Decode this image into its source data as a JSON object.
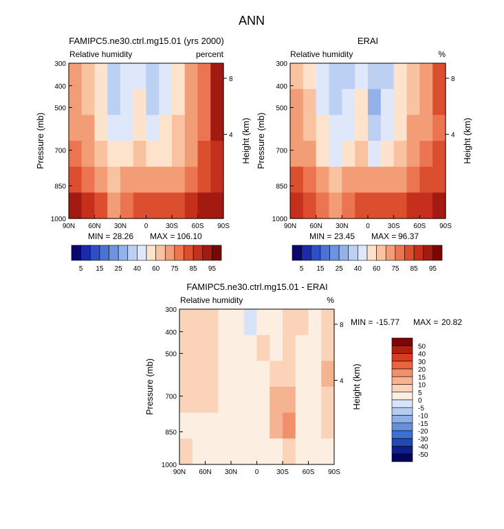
{
  "chart_data": {
    "type": "heatmap",
    "figure_title": "ANN",
    "panels": [
      {
        "id": "model",
        "title": "FAMIPC5.ne30.ctrl.mg15.01 (yrs 2000)",
        "subtitle_left": "Relative humidity",
        "subtitle_right": "percent",
        "ylabel": "Pressure (mb)",
        "y2label": "Height (km)",
        "xticks": [
          "90N",
          "60N",
          "30N",
          "0",
          "30S",
          "60S",
          "90S"
        ],
        "yticks": [
          "300",
          "400",
          "500",
          "700",
          "850",
          "1000"
        ],
        "y2ticks": [
          "8",
          "4"
        ],
        "min_label": "MIN =",
        "min_value": "28.26",
        "max_label": "MAX =",
        "max_value": "106.10",
        "colorbar_ticks": [
          "5",
          "15",
          "25",
          "40",
          "60",
          "75",
          "85",
          "95"
        ],
        "rows": [
          [
            70,
            62,
            50,
            35,
            40,
            48,
            30,
            42,
            56,
            68,
            78,
            92
          ],
          [
            72,
            64,
            52,
            38,
            42,
            50,
            34,
            46,
            58,
            66,
            76,
            94
          ],
          [
            74,
            66,
            56,
            42,
            46,
            54,
            40,
            50,
            60,
            68,
            78,
            90
          ],
          [
            76,
            70,
            60,
            50,
            55,
            62,
            52,
            58,
            64,
            70,
            80,
            86
          ],
          [
            82,
            78,
            70,
            62,
            66,
            74,
            68,
            70,
            74,
            78,
            84,
            88
          ],
          [
            92,
            86,
            80,
            72,
            76,
            84,
            82,
            84,
            82,
            88,
            92,
            94
          ]
        ]
      },
      {
        "id": "obs",
        "title": "ERAI",
        "subtitle_left": "Relative humidity",
        "subtitle_right": "%",
        "ylabel": "Pressure (mb)",
        "y2label": "Height (km)",
        "xticks": [
          "90N",
          "60N",
          "30N",
          "0",
          "30S",
          "60S",
          "90S"
        ],
        "yticks": [
          "300",
          "400",
          "500",
          "700",
          "850",
          "1000"
        ],
        "y2ticks": [
          "8",
          "4"
        ],
        "min_label": "MIN =",
        "min_value": "23.45",
        "max_label": "MAX =",
        "max_value": "96.37",
        "colorbar_ticks": [
          "5",
          "15",
          "25",
          "40",
          "60",
          "75",
          "85",
          "95"
        ],
        "rows": [
          [
            64,
            58,
            44,
            34,
            38,
            46,
            30,
            38,
            50,
            62,
            74,
            82
          ],
          [
            66,
            60,
            46,
            36,
            40,
            50,
            28,
            40,
            52,
            64,
            72,
            80
          ],
          [
            70,
            62,
            50,
            40,
            44,
            54,
            34,
            44,
            56,
            66,
            74,
            78
          ],
          [
            72,
            66,
            56,
            48,
            52,
            60,
            48,
            54,
            62,
            70,
            76,
            80
          ],
          [
            80,
            76,
            70,
            62,
            66,
            72,
            66,
            70,
            72,
            76,
            80,
            84
          ],
          [
            86,
            82,
            78,
            72,
            76,
            84,
            80,
            82,
            80,
            86,
            88,
            90
          ]
        ]
      },
      {
        "id": "diff",
        "title": "FAMIPC5.ne30.ctrl.mg15.01 - ERAI",
        "subtitle_left": "Relative humidity",
        "subtitle_right": "%",
        "ylabel": "Pressure (mb)",
        "y2label": "Height (km)",
        "xticks": [
          "90N",
          "60N",
          "30N",
          "0",
          "30S",
          "60S",
          "90S"
        ],
        "yticks": [
          "300",
          "400",
          "500",
          "700",
          "850",
          "1000"
        ],
        "y2ticks": [
          "8",
          "4"
        ],
        "min_label": "MIN =",
        "min_value": "-15.77",
        "max_label": "MAX =",
        "max_value": "20.82",
        "colorbar_ticks": [
          "50",
          "40",
          "30",
          "20",
          "15",
          "10",
          "5",
          "0",
          "-5",
          "-10",
          "-15",
          "-20",
          "-30",
          "-40",
          "-50"
        ],
        "rows": [
          [
            6,
            5,
            6,
            4,
            2,
            -3,
            4,
            2,
            6,
            5,
            4,
            8
          ],
          [
            6,
            5,
            6,
            4,
            2,
            0,
            6,
            2,
            6,
            4,
            3,
            8
          ],
          [
            5,
            6,
            6,
            2,
            2,
            0,
            4,
            6,
            8,
            2,
            4,
            10
          ],
          [
            6,
            6,
            6,
            2,
            2,
            0,
            4,
            10,
            12,
            2,
            4,
            8
          ],
          [
            4,
            3,
            3,
            2,
            2,
            1,
            4,
            12,
            15,
            2,
            4,
            6
          ],
          [
            5,
            4,
            2,
            1,
            0,
            0,
            2,
            2,
            6,
            2,
            2,
            4
          ]
        ]
      }
    ]
  }
}
